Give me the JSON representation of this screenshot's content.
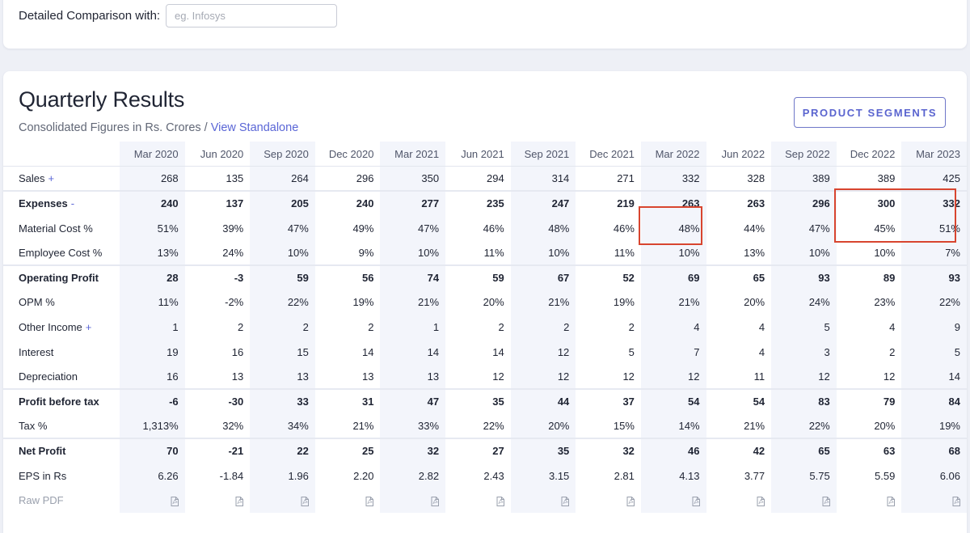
{
  "comparison": {
    "label": "Detailed Comparison with:",
    "placeholder": "eg. Infosys"
  },
  "section": {
    "title": "Quarterly Results",
    "subtitle": "Consolidated Figures in Rs. Crores",
    "separator": "/",
    "link": "View Standalone",
    "segments_button": "PRODUCT SEGMENTS"
  },
  "table": {
    "columns": [
      "Mar 2020",
      "Jun 2020",
      "Sep 2020",
      "Dec 2020",
      "Mar 2021",
      "Jun 2021",
      "Sep 2021",
      "Dec 2021",
      "Mar 2022",
      "Jun 2022",
      "Sep 2022",
      "Dec 2022",
      "Mar 2023"
    ],
    "rows": [
      {
        "label": "Sales",
        "expander": "+",
        "values": [
          "268",
          "135",
          "264",
          "296",
          "350",
          "294",
          "314",
          "271",
          "332",
          "328",
          "389",
          "389",
          "425"
        ]
      },
      {
        "label": "Expenses",
        "expander": "-",
        "values": [
          "240",
          "137",
          "205",
          "240",
          "277",
          "235",
          "247",
          "219",
          "263",
          "263",
          "296",
          "300",
          "332"
        ]
      },
      {
        "label": "Material Cost %",
        "values": [
          "51%",
          "39%",
          "47%",
          "49%",
          "47%",
          "46%",
          "48%",
          "46%",
          "48%",
          "44%",
          "47%",
          "45%",
          "51%"
        ]
      },
      {
        "label": "Employee Cost %",
        "values": [
          "13%",
          "24%",
          "10%",
          "9%",
          "10%",
          "11%",
          "10%",
          "11%",
          "10%",
          "13%",
          "10%",
          "10%",
          "7%"
        ]
      },
      {
        "label": "Operating Profit",
        "values": [
          "28",
          "-3",
          "59",
          "56",
          "74",
          "59",
          "67",
          "52",
          "69",
          "65",
          "93",
          "89",
          "93"
        ]
      },
      {
        "label": "OPM %",
        "values": [
          "11%",
          "-2%",
          "22%",
          "19%",
          "21%",
          "20%",
          "21%",
          "19%",
          "21%",
          "20%",
          "24%",
          "23%",
          "22%"
        ]
      },
      {
        "label": "Other Income",
        "expander": "+",
        "values": [
          "1",
          "2",
          "2",
          "2",
          "1",
          "2",
          "2",
          "2",
          "4",
          "4",
          "5",
          "4",
          "9"
        ]
      },
      {
        "label": "Interest",
        "values": [
          "19",
          "16",
          "15",
          "14",
          "14",
          "14",
          "12",
          "5",
          "7",
          "4",
          "3",
          "2",
          "5"
        ]
      },
      {
        "label": "Depreciation",
        "values": [
          "16",
          "13",
          "13",
          "13",
          "13",
          "12",
          "12",
          "12",
          "12",
          "11",
          "12",
          "12",
          "14"
        ]
      },
      {
        "label": "Profit before tax",
        "values": [
          "-6",
          "-30",
          "33",
          "31",
          "47",
          "35",
          "44",
          "37",
          "54",
          "54",
          "83",
          "79",
          "84"
        ]
      },
      {
        "label": "Tax %",
        "values": [
          "1,313%",
          "32%",
          "34%",
          "21%",
          "33%",
          "22%",
          "20%",
          "15%",
          "14%",
          "21%",
          "22%",
          "20%",
          "19%"
        ]
      },
      {
        "label": "Net Profit",
        "values": [
          "70",
          "-21",
          "22",
          "25",
          "32",
          "27",
          "35",
          "32",
          "46",
          "42",
          "65",
          "63",
          "68"
        ]
      },
      {
        "label": "EPS in Rs",
        "values": [
          "6.26",
          "-1.84",
          "1.96",
          "2.20",
          "2.82",
          "2.43",
          "3.15",
          "2.81",
          "4.13",
          "3.77",
          "5.75",
          "5.59",
          "6.06"
        ]
      },
      {
        "label": "Raw PDF",
        "icon": "pdf-icon"
      }
    ]
  },
  "colors": {
    "accent": "#5a66d6",
    "highlight": "#d8452f",
    "stripe": "#f3f5fb"
  }
}
